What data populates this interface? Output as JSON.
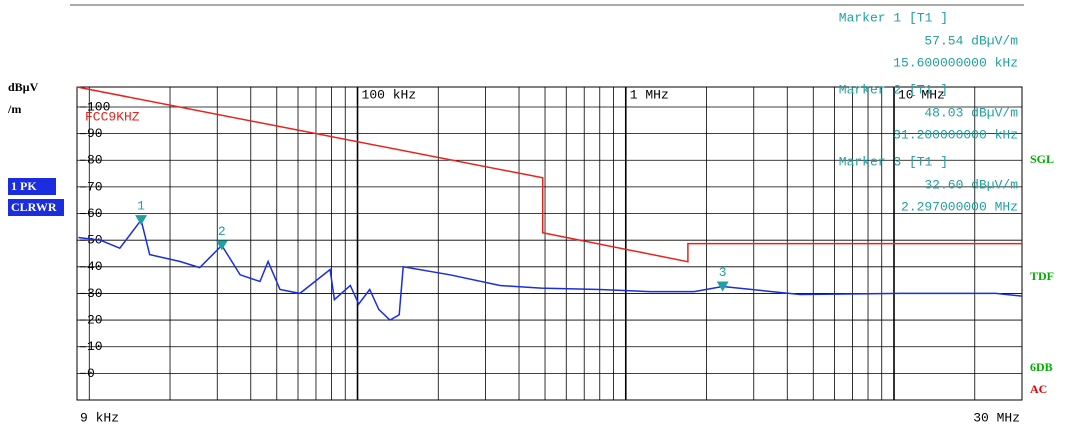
{
  "chart_data": {
    "type": "line",
    "y_unit": [
      "dBµV",
      "/m"
    ],
    "trace_labels": [
      "1 PK",
      "CLRWR"
    ],
    "status_labels": [
      {
        "text": "SGL",
        "color": "#00b000"
      },
      {
        "text": "TDF",
        "color": "#00b000"
      },
      {
        "text": "6DB",
        "color": "#00b000"
      },
      {
        "text": "AC",
        "color": "#e00000"
      }
    ],
    "x_end_labels": [
      "9 kHz",
      "30 MHz"
    ],
    "log_x": true,
    "xlim": [
      9000,
      30000000
    ],
    "ylim": [
      -10,
      107.5
    ],
    "xticks": [
      {
        "value": 100000,
        "label": "100 kHz"
      },
      {
        "value": 1000000,
        "label": "1 MHz"
      },
      {
        "value": 10000000,
        "label": "10 MHz"
      }
    ],
    "x_minor_grid": [
      10000,
      20000,
      30000,
      40000,
      50000,
      60000,
      70000,
      80000,
      90000,
      200000,
      300000,
      400000,
      500000,
      600000,
      700000,
      800000,
      900000,
      2000000,
      3000000,
      4000000,
      5000000,
      6000000,
      7000000,
      8000000,
      9000000,
      20000000
    ],
    "yticks": [
      0,
      10,
      20,
      30,
      40,
      50,
      60,
      70,
      80,
      90,
      100
    ],
    "series": [
      {
        "name": "FCC9KHZ",
        "color": "#e8231c",
        "x": [
          9000,
          490000,
          490000,
          1705000,
          1705000,
          30000000
        ],
        "values": [
          107.5,
          73.4,
          52.8,
          41.9,
          48.7,
          48.7
        ]
      },
      {
        "color": "#1a2ee0",
        "x": [
          9100,
          11000,
          13000,
          15600,
          16800,
          21800,
          25800,
          31200,
          36500,
          43300,
          46400,
          51400,
          61000,
          79000,
          82000,
          94000,
          101000,
          111000,
          120000,
          132000,
          143000,
          148000,
          221000,
          340000,
          483000,
          801000,
          1231000,
          1800000,
          2297000,
          4467000,
          10550000,
          24000000,
          30000000
        ],
        "values": [
          51,
          50,
          47,
          57.54,
          44.6,
          42,
          39.7,
          48.03,
          37,
          34.5,
          42,
          31.5,
          30,
          39,
          27.7,
          33,
          26,
          31.5,
          24,
          20,
          22,
          40,
          37,
          33,
          32,
          31.5,
          30.7,
          30.7,
          32.6,
          29.6,
          30,
          30,
          29
        ]
      }
    ],
    "markers": [
      {
        "label": "1",
        "header": "Marker 1 [T1 ]",
        "x": 15600,
        "y": 57.54,
        "y_label": "57.54 dBµV/m",
        "x_label": "15.600000000 kHz"
      },
      {
        "label": "2",
        "header": "Marker 2 [T1 ]",
        "x": 31200,
        "y": 48.03,
        "y_label": "48.03 dBµV/m",
        "x_label": "31.200000000 kHz"
      },
      {
        "label": "3",
        "header": "Marker 3 [T1 ]",
        "x": 2297000,
        "y": 32.6,
        "y_label": "32.60 dBµV/m",
        "x_label": "2.297000000 MHz"
      }
    ]
  }
}
